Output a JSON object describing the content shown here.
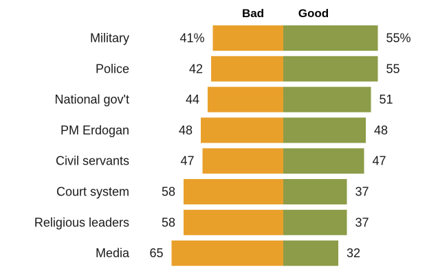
{
  "chart_data": {
    "type": "bar",
    "orientation": "horizontal-diverging",
    "legend": {
      "negative": "Bad",
      "positive": "Good"
    },
    "categories": [
      "Military",
      "Police",
      "National gov't",
      "PM Erdogan",
      "Civil servants",
      "Court system",
      "Religious leaders",
      "Media"
    ],
    "series": [
      {
        "name": "Bad",
        "values": [
          41,
          42,
          44,
          48,
          47,
          58,
          58,
          65
        ]
      },
      {
        "name": "Good",
        "values": [
          55,
          55,
          51,
          48,
          47,
          37,
          37,
          32
        ]
      }
    ],
    "bad_labels": [
      "41%",
      "42",
      "44",
      "48",
      "47",
      "58",
      "58",
      "65"
    ],
    "good_labels": [
      "55%",
      "55",
      "51",
      "48",
      "47",
      "37",
      "37",
      "32"
    ],
    "colors": {
      "bad": "#E9A02B",
      "good": "#8C9C48"
    }
  }
}
